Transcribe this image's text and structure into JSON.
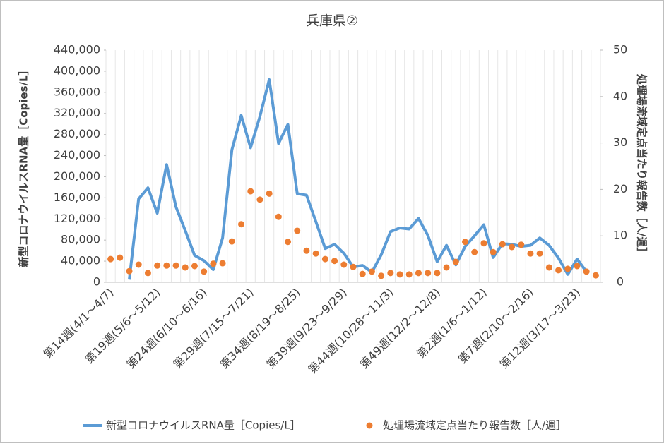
{
  "chart_data": {
    "type": "combo",
    "title": "兵庫県②",
    "y_label": "新型コロナウイルスRNA量［Copies/L］",
    "y2_label": "処理場流域定点当たり報告数［人/週］",
    "categories": [
      "第14週(4/1～4/7)",
      null,
      null,
      null,
      null,
      "第19週(5/6～5/12)",
      null,
      null,
      null,
      null,
      "第24週(6/10～6/16)",
      null,
      null,
      null,
      null,
      "第29週(7/15～7/21)",
      null,
      null,
      null,
      null,
      "第34週(8/19～8/25)",
      null,
      null,
      null,
      null,
      "第39週(9/23～9/29)",
      null,
      null,
      null,
      null,
      "第44週(10/28～11/3)",
      null,
      null,
      null,
      null,
      "第49週(12/2～12/8)",
      null,
      null,
      null,
      null,
      "第2週(1/6～1/12)",
      null,
      null,
      null,
      null,
      "第7週(2/10～2/16)",
      null,
      null,
      null,
      null,
      "第12週(3/17～3/23)",
      null,
      null
    ],
    "series": [
      {
        "name": "新型コロナウイルスRNA量［Copies/L］",
        "type": "line",
        "color": "#5b9bd5",
        "values": [
          null,
          null,
          5000,
          158000,
          179000,
          131000,
          223000,
          143000,
          98000,
          51000,
          41000,
          24000,
          84000,
          251000,
          316000,
          255000,
          314000,
          384000,
          263000,
          299000,
          168000,
          165000,
          115000,
          64000,
          72000,
          55000,
          29000,
          32000,
          19000,
          52000,
          96000,
          103000,
          101000,
          121000,
          89000,
          39000,
          70000,
          33000,
          68000,
          88000,
          109000,
          47000,
          73000,
          72000,
          68000,
          70000,
          84000,
          70000,
          46000,
          15000,
          44000,
          20000,
          null
        ]
      },
      {
        "name": "処理場流域定点当たり報告数［人/週］",
        "type": "scatter",
        "color": "#ed7d31",
        "axis": "y2",
        "values": [
          5.0,
          5.3,
          2.4,
          3.8,
          2.0,
          3.6,
          3.6,
          3.6,
          3.2,
          3.5,
          2.3,
          4.0,
          4.1,
          8.8,
          12.5,
          19.6,
          17.8,
          19.1,
          14.1,
          8.7,
          11.1,
          6.8,
          6.2,
          5.0,
          4.6,
          3.8,
          3.3,
          1.8,
          2.3,
          1.4,
          2.0,
          1.7,
          1.7,
          2.0,
          2.0,
          2.0,
          3.2,
          4.4,
          8.7,
          6.5,
          8.4,
          6.5,
          8.2,
          7.6,
          8.1,
          6.2,
          6.2,
          3.2,
          2.6,
          2.9,
          3.5,
          2.3,
          1.5
        ]
      }
    ],
    "ylim": [
      0,
      440000
    ],
    "yticks": [
      0,
      {
        "value": 40000,
        "label": "40,000"
      },
      {
        "value": 80000,
        "label": "80,000"
      },
      {
        "value": 120000,
        "label": "120,000"
      },
      {
        "value": 160000,
        "label": "160,000"
      },
      {
        "value": 200000,
        "label": "200,000"
      },
      {
        "value": 240000,
        "label": "240,000"
      },
      {
        "value": 280000,
        "label": "280,000"
      },
      {
        "value": 320000,
        "label": "320,000"
      },
      {
        "value": 360000,
        "label": "360,000"
      },
      {
        "value": 400000,
        "label": "400,000"
      },
      {
        "value": 440000,
        "label": "440,000"
      }
    ],
    "y2lim": [
      0,
      50
    ],
    "y2ticks": [
      0,
      10,
      20,
      30,
      40,
      50
    ],
    "grid": "x",
    "legend": "bottom"
  }
}
